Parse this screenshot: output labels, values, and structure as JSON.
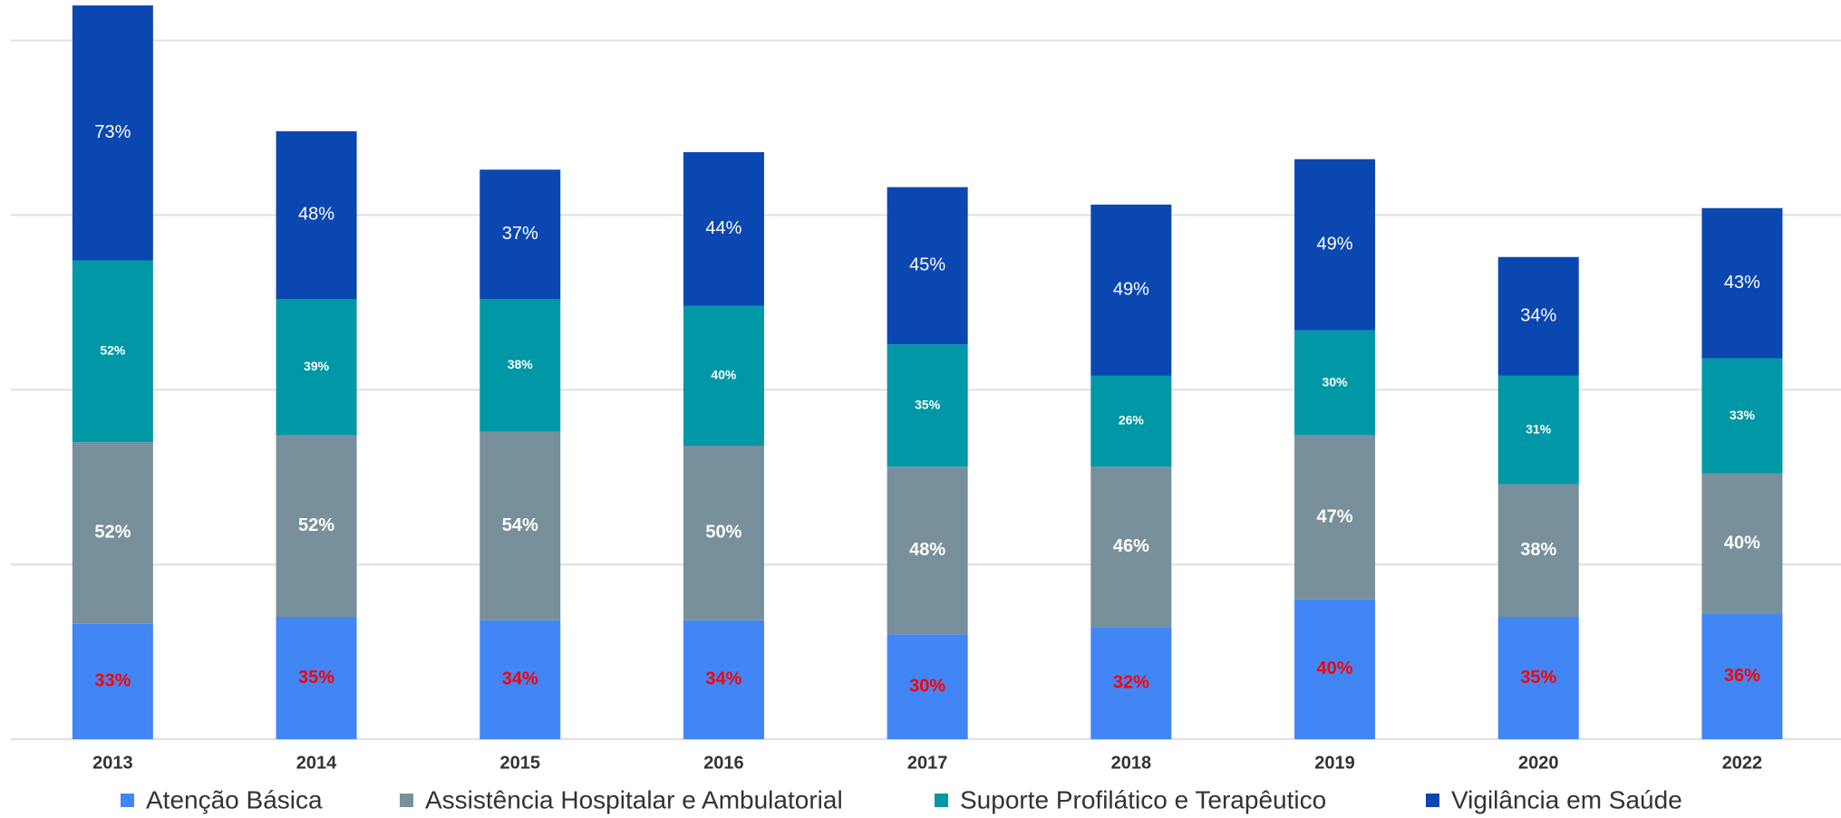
{
  "chart_data": {
    "type": "stacked_bar",
    "categories": [
      "2013",
      "2014",
      "2015",
      "2016",
      "2017",
      "2018",
      "2019",
      "2020",
      "2022"
    ],
    "series": [
      {
        "name": "Atenção Básica",
        "color": "#4285f4",
        "values": [
          33,
          35,
          34,
          34,
          30,
          32,
          40,
          35,
          36
        ],
        "value_labels": [
          "33%",
          "35%",
          "34%",
          "34%",
          "30%",
          "32%",
          "40%",
          "35%",
          "36%"
        ]
      },
      {
        "name": "Assistência Hospitalar e Ambulatorial",
        "color": "#78909c",
        "values": [
          52,
          52,
          54,
          50,
          48,
          46,
          47,
          38,
          40
        ],
        "value_labels": [
          "52%",
          "52%",
          "54%",
          "50%",
          "48%",
          "46%",
          "47%",
          "38%",
          "40%"
        ]
      },
      {
        "name": "Suporte Profilático e Terapêutico",
        "color": "#0097a7",
        "values": [
          52,
          39,
          38,
          40,
          35,
          26,
          30,
          31,
          33
        ],
        "value_labels": [
          "52%",
          "39%",
          "38%",
          "40%",
          "35%",
          "26%",
          "30%",
          "31%",
          "33%"
        ]
      },
      {
        "name": "Vigilância em Saúde",
        "color": "#0b47b1",
        "values": [
          73,
          48,
          37,
          44,
          45,
          49,
          49,
          34,
          43
        ],
        "value_labels": [
          "73%",
          "48%",
          "37%",
          "44%",
          "45%",
          "49%",
          "49%",
          "34%",
          "43%"
        ]
      }
    ],
    "ylim": [
      0,
      210
    ],
    "yticks": [
      0,
      50,
      100,
      150,
      200
    ],
    "grid": true,
    "legend": "bottom"
  }
}
